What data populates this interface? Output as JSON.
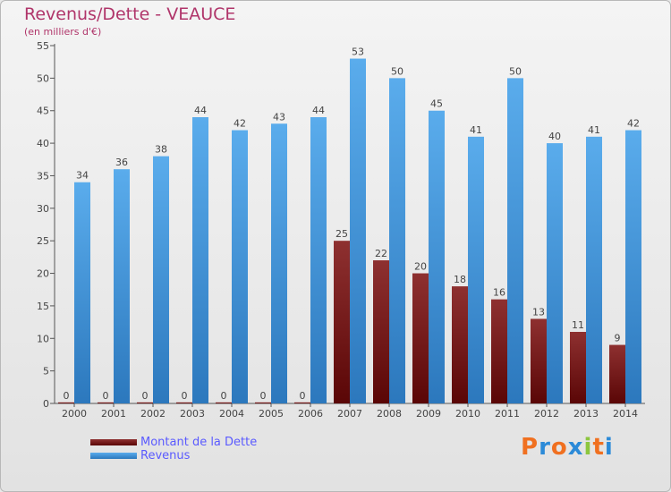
{
  "title": "Revenus/Dette - VEAUCE",
  "subtitle": "(en milliers d'€)",
  "logo": {
    "text": "Proxiti",
    "letters": [
      "P",
      "r",
      "o",
      "x",
      "i",
      "t",
      "i"
    ],
    "colors": [
      "#f07020",
      "#2b8ad8",
      "#f07020",
      "#2b8ad8",
      "#8cc63f",
      "#f07020",
      "#2b8ad8"
    ]
  },
  "colors": {
    "dette_top": "#8e3030",
    "dette_bottom": "#5a0606",
    "revenus_top": "#5aacec",
    "revenus_bottom": "#2c78bd"
  },
  "chart_data": {
    "type": "bar",
    "title": "Revenus/Dette - VEAUCE",
    "subtitle": "(en milliers d'€)",
    "categories": [
      "2000",
      "2001",
      "2002",
      "2003",
      "2004",
      "2005",
      "2006",
      "2007",
      "2008",
      "2009",
      "2010",
      "2011",
      "2012",
      "2013",
      "2014"
    ],
    "series": [
      {
        "name": "Montant de la Dette",
        "values": [
          0,
          0,
          0,
          0,
          0,
          0,
          0,
          25,
          22,
          20,
          18,
          16,
          13,
          11,
          9
        ]
      },
      {
        "name": "Revenus",
        "values": [
          34,
          36,
          38,
          44,
          42,
          43,
          44,
          53,
          50,
          45,
          41,
          50,
          40,
          41,
          42
        ]
      }
    ],
    "ylim": [
      0,
      55
    ],
    "yticks": [
      0,
      5,
      10,
      15,
      20,
      25,
      30,
      35,
      40,
      45,
      50,
      55
    ],
    "grid": false,
    "legend": "bottom-left"
  }
}
